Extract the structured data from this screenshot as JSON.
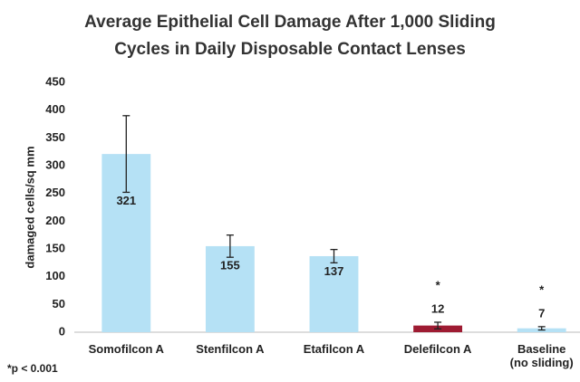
{
  "chart_data": {
    "type": "bar",
    "title": "Average Epithelial Cell Damage After 1,000 Sliding\nCycles in Daily Disposable Contact Lenses",
    "y_label": "damaged cells/sq mm",
    "categories": [
      "Somofilcon A",
      "Stenfilcon A",
      "Etafilcon A",
      "Delefilcon A",
      "Baseline\n(no sliding)"
    ],
    "values": [
      321,
      155,
      137,
      12,
      7
    ],
    "errors": [
      69,
      20,
      12,
      6,
      3
    ],
    "colors": [
      "#b5e1f5",
      "#b5e1f5",
      "#b5e1f5",
      "#9e1b32",
      "#b5e1f5"
    ],
    "significance": [
      null,
      null,
      null,
      "*",
      "*"
    ],
    "footnote": "*p < 0.001",
    "ylim": [
      0,
      450
    ],
    "yticks": [
      0,
      50,
      100,
      150,
      200,
      250,
      300,
      350,
      400,
      450
    ],
    "grid": false
  }
}
